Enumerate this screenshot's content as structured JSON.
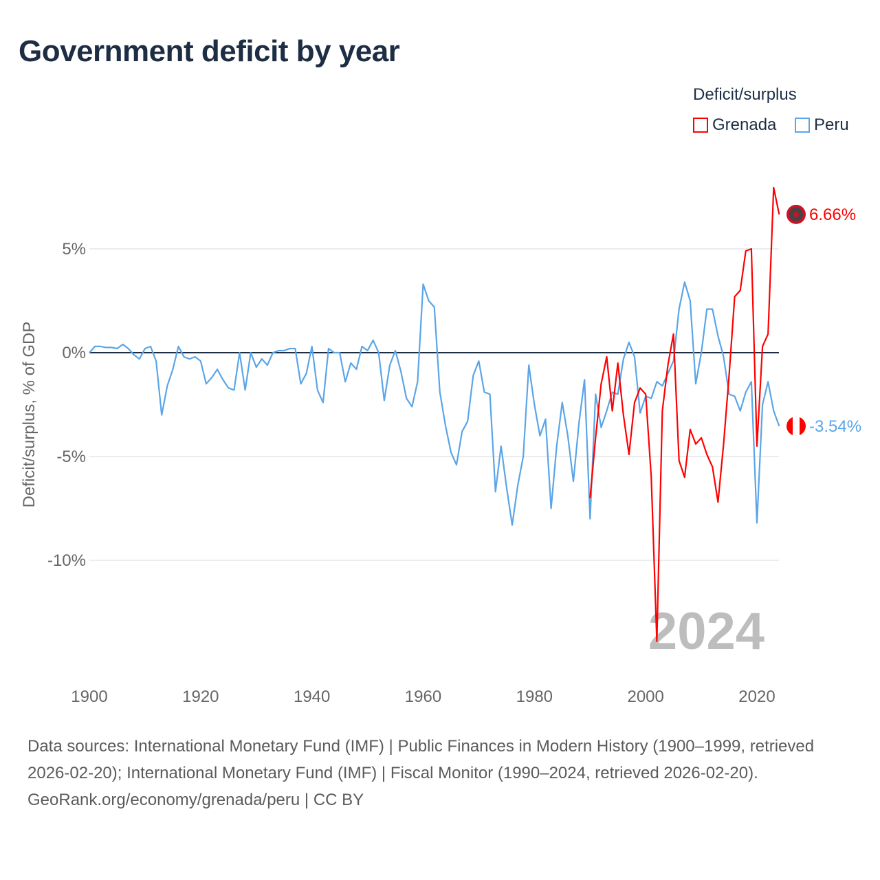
{
  "title": "Government deficit by year",
  "legend": {
    "title": "Deficit/surplus",
    "items": [
      {
        "name": "Grenada",
        "color": "#ff0000"
      },
      {
        "name": "Peru",
        "color": "#5aa5e8"
      }
    ]
  },
  "footer": {
    "sources": "Data sources: International Monetary Fund (IMF) | Public Finances in Modern History (1900–1999, retrieved 2026-02-20); International Monetary Fund (IMF) | Fiscal Monitor (1990–2024, retrieved 2026-02-20).",
    "credit": "GeoRank.org/economy/grenada/peru | CC BY"
  },
  "chart_data": {
    "type": "line",
    "title": "Government deficit by year",
    "xlabel": "",
    "ylabel": "Deficit/surplus, % of GDP",
    "xlim": [
      1900,
      2024
    ],
    "ylim": [
      -14,
      8
    ],
    "x_ticks": [
      1900,
      1920,
      1940,
      1960,
      1980,
      2000,
      2020
    ],
    "y_ticks": [
      {
        "value": 5,
        "label": "5%"
      },
      {
        "value": 0,
        "label": "0%"
      },
      {
        "value": -5,
        "label": "-5%"
      },
      {
        "value": -10,
        "label": "-10%"
      }
    ],
    "grid": true,
    "legend_position": "top-right",
    "watermark_year": "2024",
    "series": [
      {
        "name": "Grenada",
        "color": "#ff0000",
        "end_label": "6.66%",
        "start_year": 1990,
        "values": [
          -7.0,
          -4.1,
          -1.5,
          -0.2,
          -2.8,
          -0.5,
          -3.0,
          -4.9,
          -2.4,
          -1.7,
          -2.0,
          -6.0,
          -13.9,
          -2.8,
          -0.6,
          0.9,
          -5.2,
          -6.0,
          -3.7,
          -4.4,
          -4.1,
          -4.9,
          -5.5,
          -7.2,
          -4.4,
          -1.1,
          2.7,
          3.0,
          4.9,
          5.0,
          -4.5,
          0.3,
          0.9,
          7.95,
          6.66
        ]
      },
      {
        "name": "Peru",
        "color": "#5aa5e8",
        "end_label": "-3.54%",
        "start_year": 1900,
        "values": [
          0,
          0.3,
          0.3,
          0.25,
          0.25,
          0.2,
          0.4,
          0.2,
          -0.1,
          -0.3,
          0.2,
          0.3,
          -0.4,
          -3.0,
          -1.6,
          -0.8,
          0.3,
          -0.2,
          -0.3,
          -0.2,
          -0.4,
          -1.5,
          -1.2,
          -0.8,
          -1.3,
          -1.7,
          -1.8,
          0,
          -1.8,
          0,
          -0.7,
          -0.3,
          -0.6,
          0,
          0.1,
          0.1,
          0.2,
          0.2,
          -1.5,
          -1.0,
          0.3,
          -1.8,
          -2.4,
          0.2,
          0,
          0,
          -1.4,
          -0.5,
          -0.8,
          0.3,
          0.1,
          0.6,
          0,
          -2.3,
          -0.6,
          0.1,
          -0.9,
          -2.2,
          -2.6,
          -1.4,
          3.3,
          2.5,
          2.2,
          -1.9,
          -3.5,
          -4.8,
          -5.4,
          -3.8,
          -3.3,
          -1.1,
          -0.4,
          -1.9,
          -2.0,
          -6.7,
          -4.5,
          -6.5,
          -8.3,
          -6.4,
          -5.0,
          -0.6,
          -2.5,
          -4.0,
          -3.2,
          -7.5,
          -4.5,
          -2.4,
          -4.0,
          -6.2,
          -3.4,
          -1.3,
          -8.0,
          -2.0,
          -3.6,
          -2.8,
          -1.9,
          -2.0,
          -0.3,
          0.5,
          -0.2,
          -2.9,
          -2.1,
          -2.2,
          -1.4,
          -1.6,
          -1.0,
          -0.4,
          2.1,
          3.4,
          2.5,
          -1.5,
          0,
          2.1,
          2.1,
          0.8,
          -0.2,
          -2.0,
          -2.1,
          -2.8,
          -1.9,
          -1.4,
          -8.2,
          -2.5,
          -1.4,
          -2.8,
          -3.54
        ]
      }
    ]
  }
}
